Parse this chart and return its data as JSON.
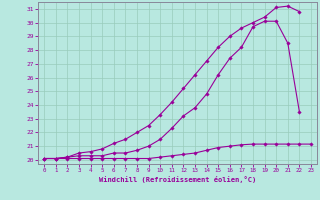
{
  "xlabel": "Windchill (Refroidissement éolien,°C)",
  "bg_color": "#b8e8e0",
  "line_color": "#990099",
  "grid_color": "#99ccbb",
  "xlim": [
    -0.5,
    23.5
  ],
  "ylim": [
    19.7,
    31.5
  ],
  "xticks": [
    0,
    1,
    2,
    3,
    4,
    5,
    6,
    7,
    8,
    9,
    10,
    11,
    12,
    13,
    14,
    15,
    16,
    17,
    18,
    19,
    20,
    21,
    22,
    23
  ],
  "yticks": [
    20,
    21,
    22,
    23,
    24,
    25,
    26,
    27,
    28,
    29,
    30,
    31
  ],
  "line1_x": [
    0,
    1,
    2,
    3,
    4,
    5,
    6,
    7,
    8,
    9,
    10,
    11,
    12,
    13,
    14,
    15,
    16,
    17,
    18,
    19,
    20,
    21,
    22,
    23
  ],
  "line1_y": [
    20.1,
    20.1,
    20.1,
    20.1,
    20.1,
    20.1,
    20.1,
    20.1,
    20.1,
    20.1,
    20.2,
    20.3,
    20.4,
    20.5,
    20.7,
    20.9,
    21.0,
    21.1,
    21.15,
    21.15,
    21.15,
    21.15,
    21.15,
    21.15
  ],
  "line2_x": [
    0,
    1,
    2,
    3,
    4,
    5,
    6,
    7,
    8,
    9,
    10,
    11,
    12,
    13,
    14,
    15,
    16,
    17,
    18,
    19,
    20,
    21,
    22
  ],
  "line2_y": [
    20.1,
    20.1,
    20.2,
    20.3,
    20.3,
    20.3,
    20.5,
    20.5,
    20.7,
    21.0,
    21.5,
    22.3,
    23.2,
    23.8,
    24.8,
    26.2,
    27.4,
    28.2,
    29.7,
    30.1,
    30.1,
    28.5,
    23.5
  ],
  "line3_x": [
    0,
    1,
    2,
    3,
    4,
    5,
    6,
    7,
    8,
    9,
    10,
    11,
    12,
    13,
    14,
    15,
    16,
    17,
    18,
    19,
    20,
    21,
    22
  ],
  "line3_y": [
    20.1,
    20.1,
    20.2,
    20.5,
    20.6,
    20.8,
    21.2,
    21.5,
    22.0,
    22.5,
    23.3,
    24.2,
    25.2,
    26.2,
    27.2,
    28.2,
    29.0,
    29.6,
    30.0,
    30.4,
    31.1,
    31.2,
    30.8
  ]
}
